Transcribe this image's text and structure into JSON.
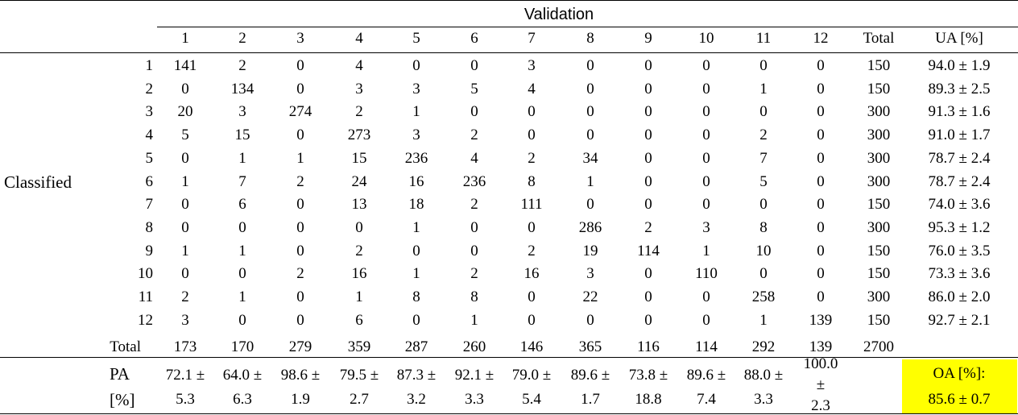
{
  "table": {
    "validation_label": "Validation",
    "classified_label": "Classified",
    "column_headers": [
      "1",
      "2",
      "3",
      "4",
      "5",
      "6",
      "7",
      "8",
      "9",
      "10",
      "11",
      "12",
      "Total",
      "UA [%]"
    ],
    "rows": [
      {
        "label": "1",
        "cells": [
          "141",
          "2",
          "0",
          "4",
          "0",
          "0",
          "3",
          "0",
          "0",
          "0",
          "0",
          "0",
          "150",
          "94.0 ± 1.9"
        ]
      },
      {
        "label": "2",
        "cells": [
          "0",
          "134",
          "0",
          "3",
          "3",
          "5",
          "4",
          "0",
          "0",
          "0",
          "1",
          "0",
          "150",
          "89.3 ± 2.5"
        ]
      },
      {
        "label": "3",
        "cells": [
          "20",
          "3",
          "274",
          "2",
          "1",
          "0",
          "0",
          "0",
          "0",
          "0",
          "0",
          "0",
          "300",
          "91.3 ± 1.6"
        ]
      },
      {
        "label": "4",
        "cells": [
          "5",
          "15",
          "0",
          "273",
          "3",
          "2",
          "0",
          "0",
          "0",
          "0",
          "2",
          "0",
          "300",
          "91.0 ± 1.7"
        ]
      },
      {
        "label": "5",
        "cells": [
          "0",
          "1",
          "1",
          "15",
          "236",
          "4",
          "2",
          "34",
          "0",
          "0",
          "7",
          "0",
          "300",
          "78.7 ± 2.4"
        ]
      },
      {
        "label": "6",
        "cells": [
          "1",
          "7",
          "2",
          "24",
          "16",
          "236",
          "8",
          "1",
          "0",
          "0",
          "5",
          "0",
          "300",
          "78.7 ± 2.4"
        ]
      },
      {
        "label": "7",
        "cells": [
          "0",
          "6",
          "0",
          "13",
          "18",
          "2",
          "111",
          "0",
          "0",
          "0",
          "0",
          "0",
          "150",
          "74.0 ± 3.6"
        ]
      },
      {
        "label": "8",
        "cells": [
          "0",
          "0",
          "0",
          "0",
          "1",
          "0",
          "0",
          "286",
          "2",
          "3",
          "8",
          "0",
          "300",
          "95.3 ± 1.2"
        ]
      },
      {
        "label": "9",
        "cells": [
          "1",
          "1",
          "0",
          "2",
          "0",
          "0",
          "2",
          "19",
          "114",
          "1",
          "10",
          "0",
          "150",
          "76.0 ± 3.5"
        ]
      },
      {
        "label": "10",
        "cells": [
          "0",
          "0",
          "2",
          "16",
          "1",
          "2",
          "16",
          "3",
          "0",
          "110",
          "0",
          "0",
          "150",
          "73.3 ± 3.6"
        ]
      },
      {
        "label": "11",
        "cells": [
          "2",
          "1",
          "0",
          "1",
          "8",
          "8",
          "0",
          "22",
          "0",
          "0",
          "258",
          "0",
          "300",
          "86.0 ± 2.0"
        ]
      },
      {
        "label": "12",
        "cells": [
          "3",
          "0",
          "0",
          "6",
          "0",
          "1",
          "0",
          "0",
          "0",
          "0",
          "1",
          "139",
          "150",
          "92.7 ± 2.1"
        ]
      }
    ],
    "total_row": {
      "label": "Total",
      "cells": [
        "173",
        "170",
        "279",
        "359",
        "287",
        "260",
        "146",
        "365",
        "116",
        "114",
        "292",
        "139",
        "2700"
      ]
    },
    "pa": {
      "label_line1": "PA",
      "label_line2": "[%]",
      "values": [
        [
          "72.1 ±",
          "5.3"
        ],
        [
          "64.0 ±",
          "6.3"
        ],
        [
          "98.6 ±",
          "1.9"
        ],
        [
          "79.5 ±",
          "2.7"
        ],
        [
          "87.3 ±",
          "3.2"
        ],
        [
          "92.1 ±",
          "3.3"
        ],
        [
          "79.0 ±",
          "5.4"
        ],
        [
          "89.6 ±",
          "1.7"
        ],
        [
          "73.8 ±",
          "18.8"
        ],
        [
          "89.6 ±",
          "7.4"
        ],
        [
          "88.0 ±",
          "3.3"
        ],
        [
          "100.0",
          "±",
          "2.3"
        ]
      ],
      "oa_line1": "OA [%]:",
      "oa_line2": "85.6 ± 0.7",
      "oa_highlight": "#ffff00"
    }
  }
}
